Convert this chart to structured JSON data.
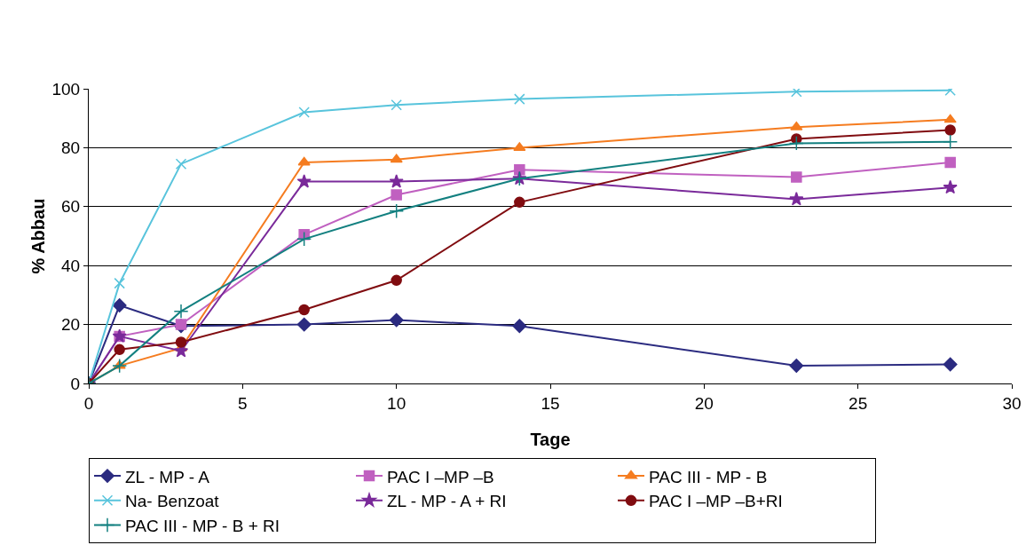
{
  "chart_data": {
    "type": "line",
    "xlabel": "Tage",
    "ylabel": "% Abbau",
    "x": [
      0,
      1,
      3,
      7,
      10,
      14,
      23,
      28
    ],
    "xlim": [
      0,
      30
    ],
    "xticks": [
      0,
      5,
      10,
      15,
      20,
      25,
      30
    ],
    "ylim": [
      0,
      100
    ],
    "yticks": [
      0,
      20,
      40,
      60,
      80,
      100
    ],
    "grid": "y",
    "legend": "bottom",
    "series": [
      {
        "name": "ZL - MP - A",
        "color": "#2b2b80",
        "marker": "diamond",
        "values": [
          0,
          26.5,
          19.5,
          20,
          21.5,
          19.5,
          6,
          6.5
        ]
      },
      {
        "name": "PAC I –MP –B",
        "color": "#c060c0",
        "marker": "square",
        "values": [
          0,
          16,
          20,
          50.5,
          64,
          72.5,
          70,
          75
        ]
      },
      {
        "name": "PAC III - MP - B",
        "color": "#f57c20",
        "marker": "triangle",
        "values": [
          0,
          6,
          12,
          75,
          76,
          80,
          87,
          89.5
        ]
      },
      {
        "name": "Na- Benzoat",
        "color": "#58c4dc",
        "marker": "cross",
        "values": [
          0,
          34,
          74.5,
          92,
          94.5,
          96.5,
          99,
          99.5
        ]
      },
      {
        "name": "ZL - MP - A + RI",
        "color": "#7a2a9a",
        "marker": "star",
        "values": [
          0,
          16,
          11,
          68.5,
          68.5,
          69.5,
          62.5,
          66.5
        ]
      },
      {
        "name": "PAC I –MP –B+RI",
        "color": "#800c10",
        "marker": "circle",
        "values": [
          0,
          11.5,
          14,
          25,
          35,
          61.5,
          83,
          86
        ]
      },
      {
        "name": "PAC III - MP - B + RI",
        "color": "#138080",
        "marker": "plus",
        "values": [
          0,
          6,
          24.5,
          49,
          58.5,
          69.5,
          81.5,
          82
        ]
      }
    ]
  }
}
